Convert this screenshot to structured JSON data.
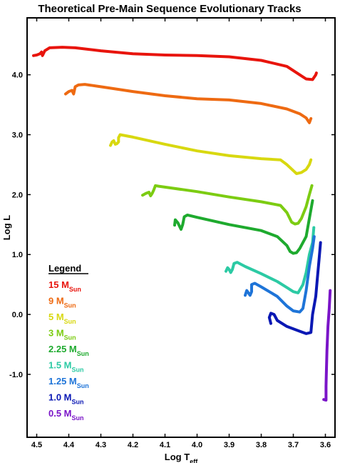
{
  "chart_data": {
    "type": "line",
    "title": "Theoretical Pre-Main Sequence Evolutionary Tracks",
    "xlabel": {
      "main": "Log T",
      "sub": "eff"
    },
    "ylabel": "Log L",
    "xlim": [
      4.53,
      3.57
    ],
    "ylim": [
      -2.05,
      4.95
    ],
    "x_reversed": true,
    "x_ticks": [
      4.5,
      4.4,
      4.3,
      4.2,
      4.1,
      4.0,
      3.9,
      3.8,
      3.7,
      3.6
    ],
    "x_tick_labels": [
      "4.5",
      "4.4",
      "4.3",
      "4.2",
      "4.1",
      "4.0",
      "3.9",
      "3.8",
      "3.7",
      "3.6"
    ],
    "y_ticks": [
      -1.0,
      0.0,
      1.0,
      2.0,
      3.0,
      4.0
    ],
    "y_tick_labels": [
      "-1.0",
      "0.0",
      "1.0",
      "2.0",
      "3.0",
      "4.0"
    ],
    "grid": false,
    "legend": {
      "title": "Legend",
      "placement": "lower-left",
      "unit_main": "M",
      "unit_sub": "Sun"
    },
    "series": [
      {
        "name": "15",
        "color": "#e8140c",
        "points": [
          [
            4.51,
            4.32
          ],
          [
            4.5,
            4.33
          ],
          [
            4.49,
            4.35
          ],
          [
            4.485,
            4.38
          ],
          [
            4.482,
            4.32
          ],
          [
            4.475,
            4.4
          ],
          [
            4.46,
            4.45
          ],
          [
            4.42,
            4.46
          ],
          [
            4.38,
            4.45
          ],
          [
            4.3,
            4.4
          ],
          [
            4.2,
            4.35
          ],
          [
            4.1,
            4.33
          ],
          [
            4.0,
            4.32
          ],
          [
            3.9,
            4.3
          ],
          [
            3.8,
            4.24
          ],
          [
            3.72,
            4.14
          ],
          [
            3.68,
            4.0
          ],
          [
            3.66,
            3.93
          ],
          [
            3.64,
            3.92
          ],
          [
            3.63,
            4.0
          ],
          [
            3.628,
            4.03
          ]
        ]
      },
      {
        "name": "9",
        "color": "#ee6a12",
        "points": [
          [
            4.41,
            3.68
          ],
          [
            4.4,
            3.72
          ],
          [
            4.39,
            3.74
          ],
          [
            4.385,
            3.68
          ],
          [
            4.38,
            3.8
          ],
          [
            4.37,
            3.83
          ],
          [
            4.35,
            3.84
          ],
          [
            4.3,
            3.8
          ],
          [
            4.2,
            3.72
          ],
          [
            4.1,
            3.65
          ],
          [
            4.0,
            3.6
          ],
          [
            3.9,
            3.58
          ],
          [
            3.8,
            3.52
          ],
          [
            3.72,
            3.43
          ],
          [
            3.68,
            3.35
          ],
          [
            3.66,
            3.28
          ],
          [
            3.65,
            3.2
          ],
          [
            3.645,
            3.27
          ]
        ]
      },
      {
        "name": "5",
        "color": "#d8d810",
        "points": [
          [
            4.27,
            2.82
          ],
          [
            4.265,
            2.88
          ],
          [
            4.26,
            2.9
          ],
          [
            4.255,
            2.84
          ],
          [
            4.25,
            2.85
          ],
          [
            4.245,
            2.88
          ],
          [
            4.245,
            2.95
          ],
          [
            4.24,
            3.0
          ],
          [
            4.2,
            2.96
          ],
          [
            4.1,
            2.84
          ],
          [
            4.0,
            2.73
          ],
          [
            3.9,
            2.65
          ],
          [
            3.8,
            2.6
          ],
          [
            3.74,
            2.58
          ],
          [
            3.72,
            2.5
          ],
          [
            3.7,
            2.4
          ],
          [
            3.69,
            2.35
          ],
          [
            3.675,
            2.37
          ],
          [
            3.66,
            2.42
          ],
          [
            3.65,
            2.5
          ],
          [
            3.645,
            2.58
          ]
        ]
      },
      {
        "name": "3",
        "color": "#7ccc12",
        "points": [
          [
            4.17,
            1.99
          ],
          [
            4.16,
            2.02
          ],
          [
            4.15,
            2.04
          ],
          [
            4.145,
            1.98
          ],
          [
            4.14,
            2.02
          ],
          [
            4.135,
            2.08
          ],
          [
            4.13,
            2.15
          ],
          [
            4.12,
            2.14
          ],
          [
            4.0,
            2.05
          ],
          [
            3.9,
            1.96
          ],
          [
            3.8,
            1.88
          ],
          [
            3.74,
            1.82
          ],
          [
            3.72,
            1.7
          ],
          [
            3.705,
            1.54
          ],
          [
            3.695,
            1.51
          ],
          [
            3.685,
            1.52
          ],
          [
            3.675,
            1.6
          ],
          [
            3.66,
            1.8
          ],
          [
            3.65,
            2.0
          ],
          [
            3.642,
            2.15
          ]
        ]
      },
      {
        "name": "2.25",
        "color": "#1eaa2e",
        "points": [
          [
            4.07,
            1.49
          ],
          [
            4.068,
            1.58
          ],
          [
            4.06,
            1.53
          ],
          [
            4.05,
            1.42
          ],
          [
            4.045,
            1.5
          ],
          [
            4.04,
            1.63
          ],
          [
            4.03,
            1.66
          ],
          [
            4.0,
            1.62
          ],
          [
            3.9,
            1.5
          ],
          [
            3.8,
            1.4
          ],
          [
            3.75,
            1.3
          ],
          [
            3.72,
            1.15
          ],
          [
            3.71,
            1.05
          ],
          [
            3.7,
            1.02
          ],
          [
            3.69,
            1.03
          ],
          [
            3.68,
            1.1
          ],
          [
            3.66,
            1.3
          ],
          [
            3.65,
            1.6
          ],
          [
            3.64,
            1.9
          ]
        ]
      },
      {
        "name": "1.5",
        "color": "#2ccaa4",
        "points": [
          [
            3.91,
            0.72
          ],
          [
            3.905,
            0.78
          ],
          [
            3.9,
            0.75
          ],
          [
            3.895,
            0.7
          ],
          [
            3.89,
            0.75
          ],
          [
            3.885,
            0.85
          ],
          [
            3.875,
            0.87
          ],
          [
            3.85,
            0.8
          ],
          [
            3.8,
            0.68
          ],
          [
            3.75,
            0.55
          ],
          [
            3.72,
            0.45
          ],
          [
            3.7,
            0.38
          ],
          [
            3.685,
            0.36
          ],
          [
            3.67,
            0.5
          ],
          [
            3.66,
            0.7
          ],
          [
            3.65,
            1.0
          ],
          [
            3.64,
            1.2
          ],
          [
            3.636,
            1.45
          ]
        ]
      },
      {
        "name": "1.25",
        "color": "#1e74d8",
        "points": [
          [
            3.85,
            0.32
          ],
          [
            3.845,
            0.4
          ],
          [
            3.84,
            0.36
          ],
          [
            3.835,
            0.32
          ],
          [
            3.83,
            0.38
          ],
          [
            3.83,
            0.5
          ],
          [
            3.82,
            0.52
          ],
          [
            3.8,
            0.46
          ],
          [
            3.75,
            0.3
          ],
          [
            3.72,
            0.14
          ],
          [
            3.7,
            0.06
          ],
          [
            3.68,
            0.04
          ],
          [
            3.67,
            0.1
          ],
          [
            3.66,
            0.4
          ],
          [
            3.65,
            0.8
          ],
          [
            3.64,
            1.1
          ],
          [
            3.635,
            1.3
          ]
        ]
      },
      {
        "name": "1.0",
        "color": "#0a18b4",
        "points": [
          [
            3.77,
            -0.15
          ],
          [
            3.775,
            -0.05
          ],
          [
            3.77,
            0.02
          ],
          [
            3.76,
            0.0
          ],
          [
            3.75,
            -0.1
          ],
          [
            3.72,
            -0.2
          ],
          [
            3.68,
            -0.28
          ],
          [
            3.66,
            -0.32
          ],
          [
            3.645,
            -0.3
          ],
          [
            3.64,
            0.0
          ],
          [
            3.63,
            0.3
          ],
          [
            3.625,
            0.6
          ],
          [
            3.62,
            0.9
          ],
          [
            3.615,
            1.2
          ]
        ]
      },
      {
        "name": "0.5",
        "color": "#7a14c8",
        "points": [
          [
            3.605,
            -1.42
          ],
          [
            3.598,
            -1.43
          ],
          [
            3.598,
            -1.2
          ],
          [
            3.597,
            -1.0
          ],
          [
            3.595,
            -0.6
          ],
          [
            3.592,
            -0.2
          ],
          [
            3.588,
            0.1
          ],
          [
            3.585,
            0.4
          ]
        ]
      }
    ]
  }
}
